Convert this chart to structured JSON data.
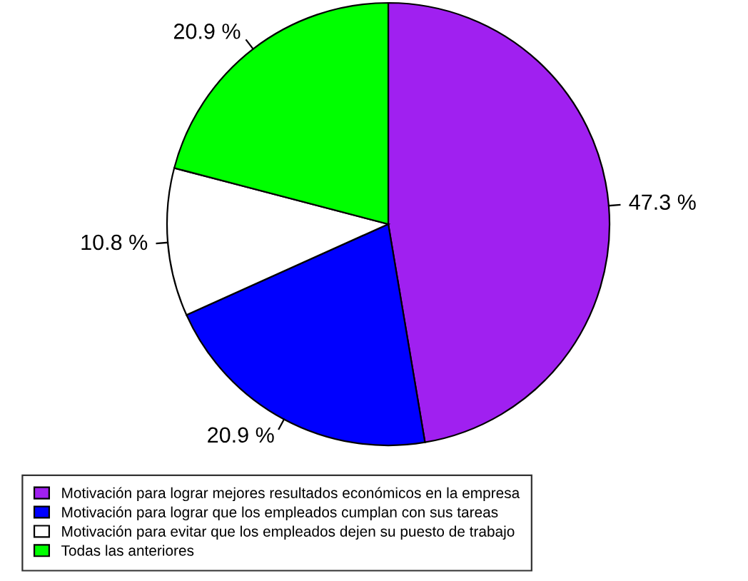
{
  "chart_data": {
    "type": "pie",
    "categories": [
      "Motivación para lograr mejores resultados económicos en la empresa",
      "Motivación para lograr que los empleados cumplan con sus tareas",
      "Motivación para evitar que los empleados dejen su puesto de trabajo",
      "Todas las anteriores"
    ],
    "values": [
      47.3,
      20.9,
      10.8,
      20.9
    ],
    "colors": [
      "#a020f0",
      "#0000ff",
      "#ffffff",
      "#00ff00"
    ],
    "value_labels": [
      "47.3 %",
      "20.9 %",
      "10.8 %",
      "20.9 %"
    ],
    "legend": "bottom"
  }
}
